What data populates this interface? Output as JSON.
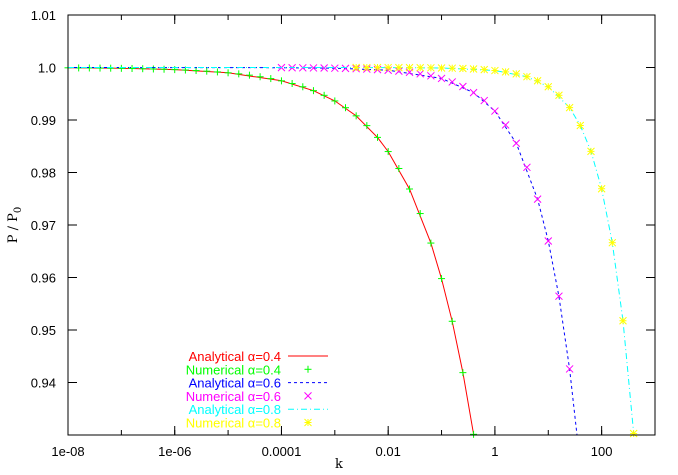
{
  "chart_data": {
    "type": "line",
    "xlabel": "k",
    "ylabel": "P / P",
    "ylabel_sub": "0",
    "xscale": "log",
    "xlim": [
      1e-08,
      1000
    ],
    "ylim": [
      0.93,
      1.01
    ],
    "xticks": [
      1e-08,
      1e-06,
      0.0001,
      0.01,
      1,
      100
    ],
    "xtick_labels": [
      "1e-08",
      "1e-06",
      "0.0001",
      "0.01",
      "1",
      "100"
    ],
    "yticks": [
      0.94,
      0.95,
      0.96,
      0.97,
      0.98,
      0.99,
      1.0,
      1.01
    ],
    "ytick_labels": [
      "0.94",
      "0.95",
      "0.96",
      "0.97",
      "0.98",
      "0.99",
      "1.0",
      "1.01"
    ],
    "grid": false,
    "legend_position": "bottom-left",
    "series": [
      {
        "name": "Analytical α=0.4",
        "style": "solid-line",
        "color": "#ff0000",
        "k": [
          1e-08,
          1e-07,
          1e-06,
          1e-05,
          0.0001,
          0.0003981,
          0.001,
          0.002512,
          0.00631,
          0.01,
          0.02512,
          0.0631,
          0.1,
          0.1585,
          0.2512,
          0.3981,
          0.631
        ],
        "P": [
          0.99994,
          0.99984,
          0.9996,
          0.99899,
          0.99746,
          0.99559,
          0.99363,
          0.99079,
          0.98669,
          0.98399,
          0.97686,
          0.96656,
          0.95979,
          0.95166,
          0.94188,
          0.93013,
          0.916
        ]
      },
      {
        "name": "Numerical α=0.4",
        "style": "plus",
        "color": "#00ff00",
        "k": [
          1e-08,
          1.585e-08,
          2.512e-08,
          3.981e-08,
          6.31e-08,
          1e-07,
          1.585e-07,
          2.512e-07,
          3.981e-07,
          6.31e-07,
          1e-06,
          1.585e-06,
          2.512e-06,
          3.981e-06,
          6.31e-06,
          1e-05,
          1.585e-05,
          2.512e-05,
          3.981e-05,
          6.31e-05,
          0.0001,
          0.0001585,
          0.0002512,
          0.0003981,
          0.000631,
          0.001,
          0.001585,
          0.002512,
          0.003981,
          0.00631,
          0.01,
          0.01585,
          0.02512,
          0.03981,
          0.0631,
          0.1,
          0.1585,
          0.2512,
          0.3981
        ],
        "P": [
          0.99994,
          0.99992,
          0.99991,
          0.99989,
          0.99987,
          0.99984,
          0.99981,
          0.99977,
          0.99972,
          0.99967,
          0.9996,
          0.99952,
          0.99942,
          0.9993,
          0.99916,
          0.99899,
          0.99879,
          0.99854,
          0.99824,
          0.99789,
          0.99746,
          0.99695,
          0.99633,
          0.99559,
          0.9947,
          0.99363,
          0.99234,
          0.99079,
          0.98893,
          0.98669,
          0.98399,
          0.98076,
          0.97686,
          0.97218,
          0.96656,
          0.95979,
          0.95166,
          0.94188,
          0.93013
        ]
      },
      {
        "name": "Analytical α=0.6",
        "style": "dashed-line",
        "color": "#0000ff",
        "k": [
          1e-08,
          1e-06,
          0.0001,
          0.001,
          0.01,
          0.1,
          0.3981,
          1,
          2.512,
          6.31,
          10,
          15.85,
          25.12,
          39.81
        ],
        "P": [
          1.0,
          0.99999,
          0.99997,
          0.99987,
          0.99948,
          0.99792,
          0.99522,
          0.9917,
          0.98557,
          0.97493,
          0.96696,
          0.95644,
          0.94258,
          0.9243
        ]
      },
      {
        "name": "Numerical α=0.6",
        "style": "cross",
        "color": "#ff00ff",
        "k": [
          0.0001,
          0.0001585,
          0.0002512,
          0.0003981,
          0.000631,
          0.001,
          0.001585,
          0.002512,
          0.003981,
          0.00631,
          0.01,
          0.01585,
          0.02512,
          0.03981,
          0.0631,
          0.1,
          0.1585,
          0.2512,
          0.3981,
          0.631,
          1,
          1.585,
          2.512,
          3.981,
          6.31,
          10,
          15.85,
          25.12
        ],
        "P": [
          0.99997,
          0.99996,
          0.99994,
          0.99992,
          0.9999,
          0.99987,
          0.99983,
          0.99977,
          0.9997,
          0.9996,
          0.99948,
          0.99931,
          0.99909,
          0.9988,
          0.99842,
          0.99792,
          0.99725,
          0.99638,
          0.99522,
          0.9937,
          0.9917,
          0.98906,
          0.98557,
          0.98099,
          0.97493,
          0.96696,
          0.95644,
          0.94258
        ]
      },
      {
        "name": "Analytical α=0.8",
        "style": "dash-dot-line",
        "color": "#00ffff",
        "k": [
          1e-08,
          0.0001,
          0.01,
          0.1,
          1,
          3.981,
          10,
          25.12,
          39.81,
          63.1,
          100,
          158.5,
          251.2,
          398.1,
          631
        ],
        "P": [
          1.0,
          1.0,
          0.99999,
          0.99991,
          0.99942,
          0.99825,
          0.99634,
          0.99236,
          0.98895,
          0.98403,
          0.97691,
          0.96663,
          0.95176,
          0.93028,
          0.899
        ]
      },
      {
        "name": "Numerical α=0.8",
        "style": "star",
        "color": "#ffff00",
        "k": [
          0.002512,
          0.003981,
          0.00631,
          0.01,
          0.01585,
          0.02512,
          0.03981,
          0.0631,
          0.1,
          0.1585,
          0.2512,
          0.3981,
          0.631,
          1,
          1.585,
          2.512,
          3.981,
          6.31,
          10,
          15.85,
          25.12,
          39.81,
          63.1,
          100,
          158.5,
          251.2,
          398.1
        ],
        "P": [
          1.0,
          0.99999,
          0.99999,
          0.99999,
          0.99998,
          0.99997,
          0.99996,
          0.99994,
          0.99991,
          0.99987,
          0.99981,
          0.99972,
          0.9996,
          0.99942,
          0.99916,
          0.99879,
          0.99825,
          0.99747,
          0.99634,
          0.99471,
          0.99236,
          0.98895,
          0.98403,
          0.97691,
          0.96663,
          0.95176,
          0.93028
        ]
      }
    ]
  }
}
